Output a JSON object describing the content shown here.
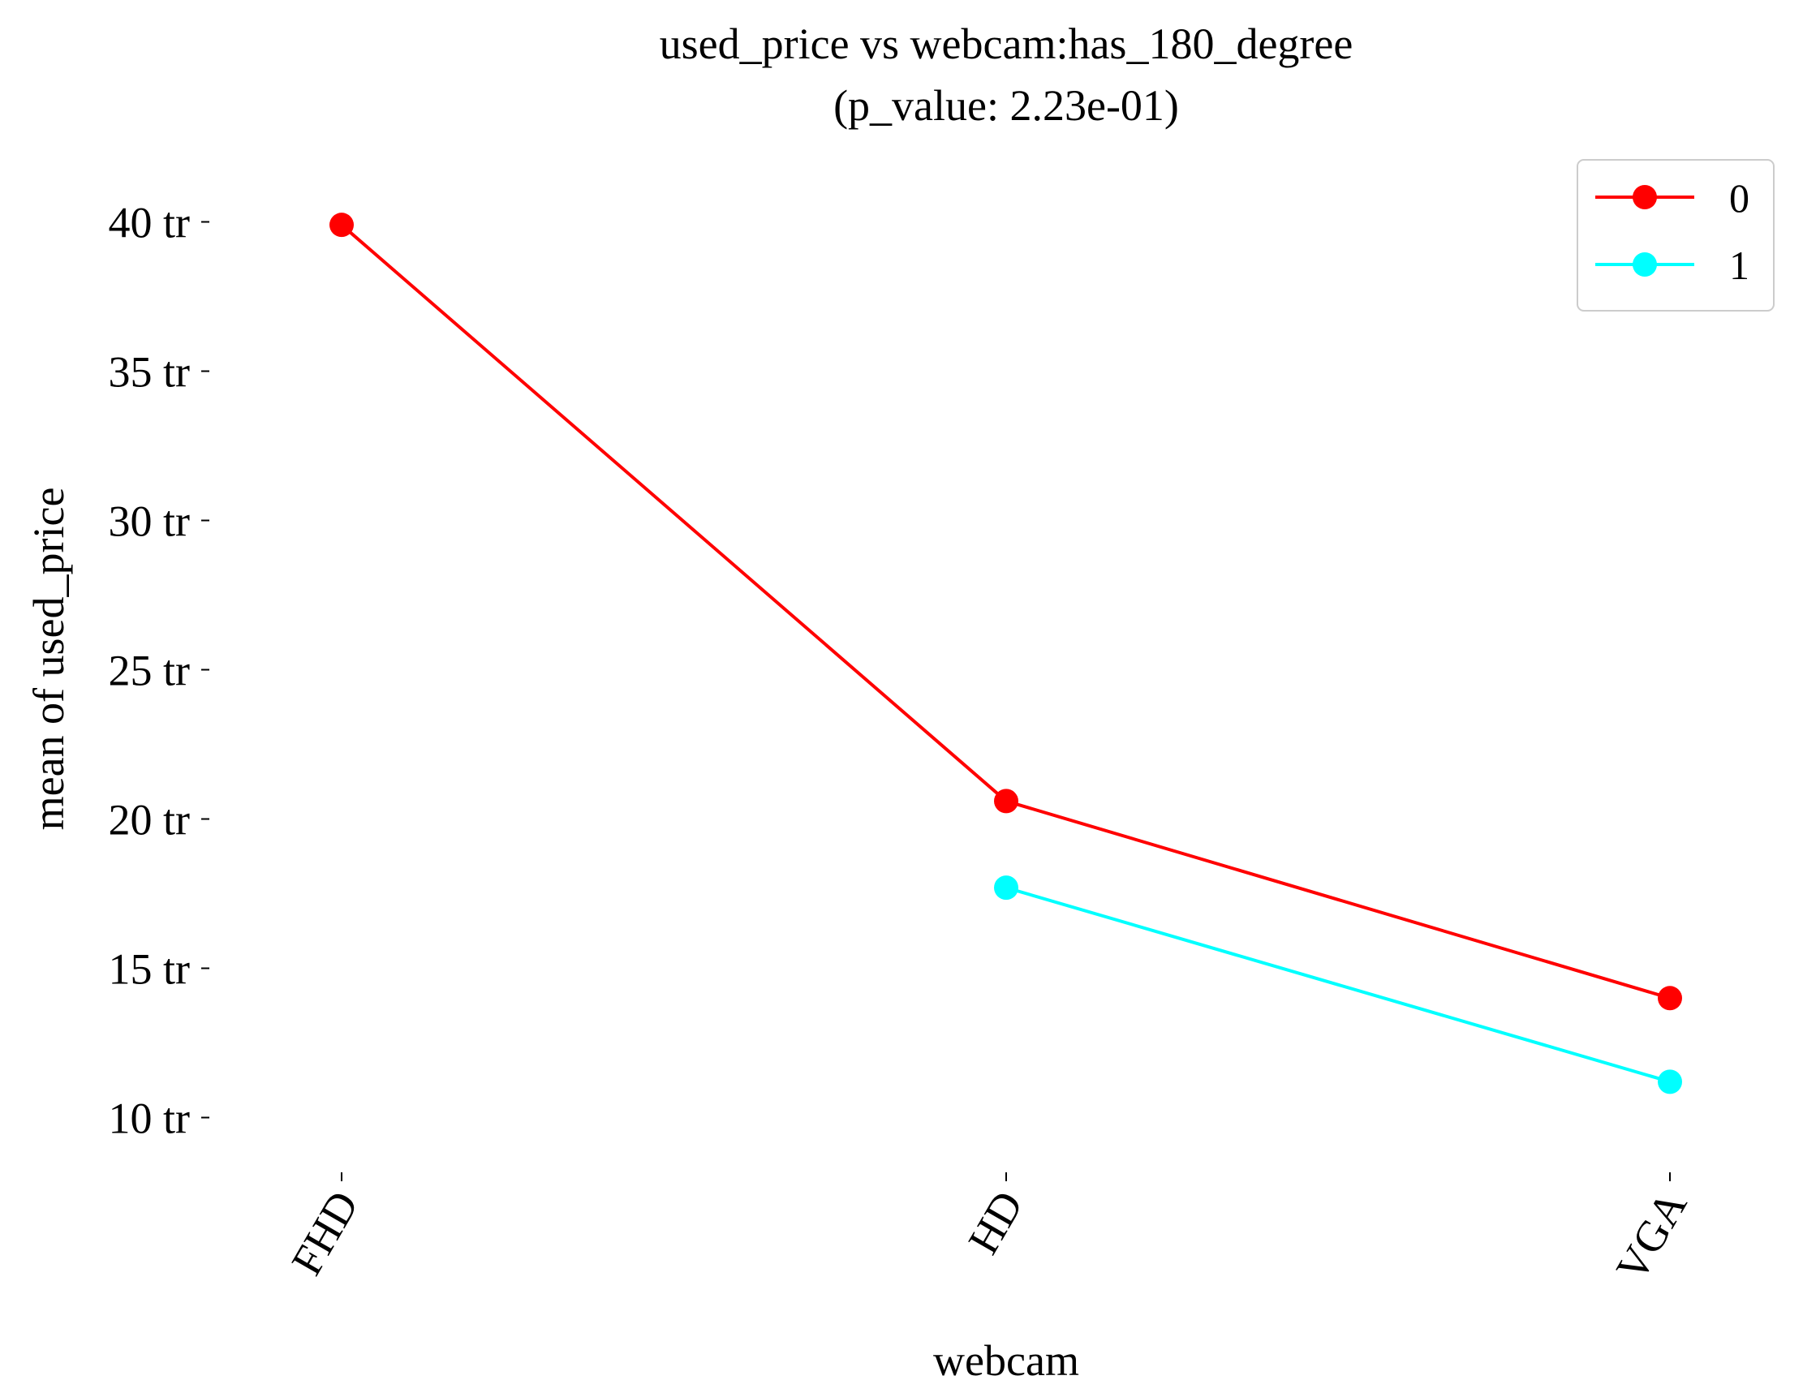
{
  "chart_data": {
    "type": "line",
    "title": "used_price vs webcam:has_180_degree",
    "subtitle": "(p_value: 2.23e-01)",
    "xlabel": "webcam",
    "ylabel": "mean of used_price",
    "categories": [
      "FHD",
      "HD",
      "VGA"
    ],
    "y_ticks": [
      10,
      15,
      20,
      25,
      30,
      35,
      40
    ],
    "y_tick_labels": [
      "10 tr",
      "15 tr",
      "20 tr",
      "25 tr",
      "30 tr",
      "35 tr",
      "40 tr"
    ],
    "ylim": [
      8,
      42
    ],
    "grid": false,
    "legend_position": "top-right",
    "series": [
      {
        "name": "0",
        "color": "#ff0000",
        "values": [
          39.9,
          20.6,
          14.0
        ]
      },
      {
        "name": "1",
        "color": "#00ffff",
        "values": [
          null,
          17.7,
          11.2
        ]
      }
    ]
  }
}
